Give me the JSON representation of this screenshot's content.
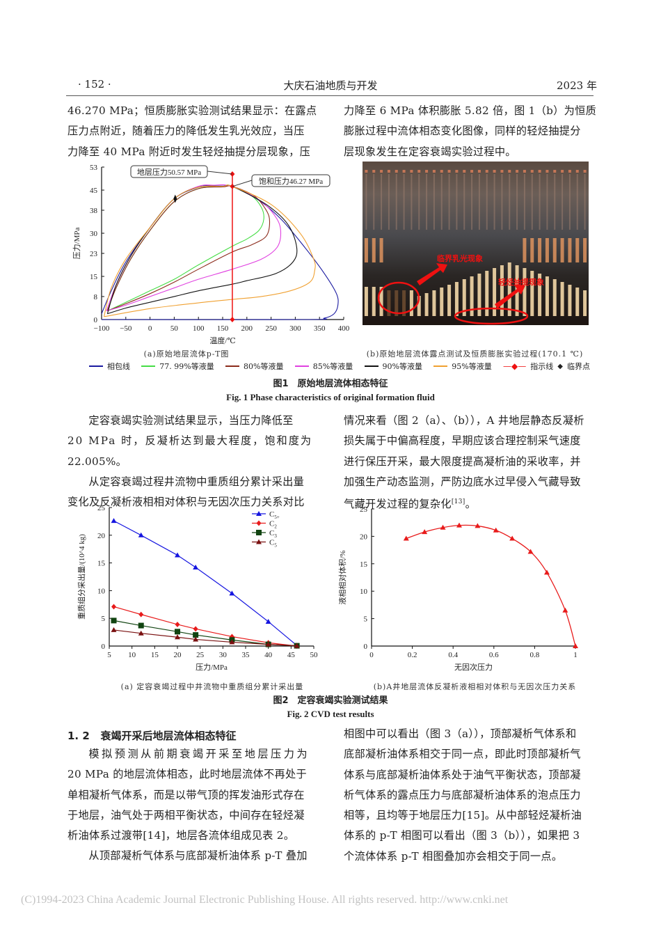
{
  "header": {
    "page_number": "· 152 ·",
    "journal": "大庆石油地质与开发",
    "year": "2023 年"
  },
  "top_text": {
    "left": [
      "46.270 MPa；恒质膨胀实验测试结果显示：在露点",
      "压力点附近，随着压力的降低发生乳光效应，当压",
      "力降至 40 MPa 附近时发生轻烃抽提分层现象，压"
    ],
    "right": [
      "力降至 6 MPa 体积膨胀 5.82 倍，图 1（b）为恒质",
      "膨胀过程中流体相态变化图像，同样的轻烃抽提分",
      "层现象发生在定容衰竭实验过程中。"
    ]
  },
  "fig1": {
    "subcap_a": "(a)原始地层流体p-T图",
    "subcap_b": "(b)原始地层流体露点测试及恒质膨胀实验过程(170.1 ℃)",
    "photo_labels": {
      "critical": "临界乳光现象",
      "extraction": "轻烃抽提现象"
    },
    "legend": [
      {
        "label": "相包线",
        "color": "#1a1aa0"
      },
      {
        "label": "77. 99%等液量",
        "color": "#44dd44"
      },
      {
        "label": "80%等液量",
        "color": "#8b2a1a"
      },
      {
        "label": "85%等液量",
        "color": "#e040e0"
      },
      {
        "label": "90%等液量",
        "color": "#111111"
      },
      {
        "label": "95%等液量",
        "color": "#f0a030"
      },
      {
        "label": "指示线",
        "color": "#ee1111"
      },
      {
        "label": "临界点",
        "color": "#111111"
      }
    ],
    "caption_cn": "图1　原始地层流体相态特征",
    "caption_en": "Fig. 1  Phase characteristics of original formation fluid"
  },
  "mid_text": {
    "left": [
      {
        "indent": true,
        "text": "定容衰竭实验测试结果显示，当压力降低至"
      },
      {
        "indent": false,
        "text": "20 MPa 时，反凝析达到最大程度，饱和度为"
      },
      {
        "indent": false,
        "text": "22.005%。"
      },
      {
        "indent": true,
        "text": "从定容衰竭过程井流物中重质组分累计采出量"
      },
      {
        "indent": false,
        "text": "变化及反凝析液相相对体积与无因次压力关系对比"
      }
    ],
    "right": [
      "情况来看（图 2（a）、（b）），A 井地层静态反凝析",
      "损失属于中偏高程度，早期应该合理控制采气速度",
      "进行保压开采，最大限度提高凝析油的采收率，并",
      "加强生产动态监测，严防边底水过早侵入气藏导致",
      "气藏开发过程的复杂化"
    ],
    "right_ref": "[13]",
    "right_end": "。"
  },
  "fig2": {
    "subcap_a": "(a) 定容衰竭过程中井流物中重质组分累计采出量",
    "subcap_b": "(b)A井地层流体反凝析液相相对体积与无因次压力关系",
    "caption_cn": "图2　定容衰竭实验测试结果",
    "caption_en": "Fig. 2  CVD test results"
  },
  "section": {
    "number": "1. 2",
    "title": "衰竭开采后地层流体相态特征"
  },
  "bottom_text": {
    "left": [
      {
        "indent": true,
        "text": "模拟预测从前期衰竭开采至地层压力为"
      },
      {
        "indent": false,
        "text": "20 MPa 的地层流体相态，此时地层流体不再处于"
      },
      {
        "indent": false,
        "text": "单相凝析气体系，而是以带气顶的挥发油形式存在"
      },
      {
        "indent": false,
        "text": "于地层，油气处于两相平衡状态，中间存在轻烃凝"
      },
      {
        "indent": false,
        "text": "析油体系过渡带[14]，地层各流体组成见表 2。"
      },
      {
        "indent": true,
        "text": "从顶部凝析气体系与底部凝析油体系 p-T 叠加"
      }
    ],
    "right": [
      "相图中可以看出（图 3（a）），顶部凝析气体系和",
      "底部凝析油体系相交于同一点，即此时顶部凝析气",
      "体系与底部凝析油体系处于油气平衡状态，顶部凝",
      "析气体系的露点压力与底部凝析油体系的泡点压力",
      "相等，且均等于地层压力[15]。从中部轻烃凝析油",
      "体系的 p-T 相图可以看出（图 3（b）），如果把 3",
      "个流体体系 p-T 相图叠加亦会相交于同一点。"
    ]
  },
  "footer": "(C)1994-2023 China Academic Journal Electronic Publishing House. All rights reserved.    http://www.cnki.net",
  "chart_data": [
    {
      "type": "line",
      "title": "(a)原始地层流体p-T图",
      "xlabel": "温度/℃",
      "ylabel": "压力/MPa",
      "xlim": [
        -100,
        400
      ],
      "ylim": [
        0,
        53
      ],
      "xticks": [
        -100,
        -50,
        0,
        50,
        100,
        150,
        200,
        250,
        300,
        350,
        400
      ],
      "yticks": [
        0,
        8,
        15,
        23,
        30,
        38,
        45,
        53
      ],
      "annotations": [
        {
          "text": "地层压力50.57 MPa",
          "x": 170,
          "y": 50.57
        },
        {
          "text": "饱和压力46.27 MPa",
          "x": 170,
          "y": 46.27
        }
      ],
      "critical_point": {
        "x": 52,
        "y": 42
      },
      "indicator_line": {
        "x": 170,
        "points_y": [
          0,
          46.27,
          50.57
        ]
      },
      "series": [
        {
          "name": "相包线",
          "color": "#1a1aa0",
          "points": [
            [
              -100,
              2
            ],
            [
              -80,
              10
            ],
            [
              -50,
              20
            ],
            [
              0,
              32
            ],
            [
              50,
              42
            ],
            [
              100,
              46
            ],
            [
              130,
              46.6
            ],
            [
              170,
              46.27
            ],
            [
              220,
              42
            ],
            [
              270,
              35
            ],
            [
              320,
              25
            ],
            [
              360,
              16
            ],
            [
              385,
              9
            ],
            [
              388,
              5
            ],
            [
              380,
              2
            ],
            [
              360,
              0.5
            ],
            [
              320,
              0
            ],
            [
              -100,
              0
            ]
          ]
        },
        {
          "name": "77.99%等液量",
          "color": "#44dd44",
          "points": [
            [
              -88,
              3
            ],
            [
              -70,
              11
            ],
            [
              -40,
              21
            ],
            [
              0,
              31
            ],
            [
              50,
              41
            ],
            [
              100,
              45.5
            ],
            [
              150,
              46.2
            ],
            [
              170,
              46.27
            ],
            [
              210,
              43
            ],
            [
              230,
              39
            ],
            [
              235,
              35
            ],
            [
              225,
              31
            ],
            [
              200,
              28
            ],
            [
              170,
              25.5
            ],
            [
              100,
              19
            ],
            [
              50,
              14
            ],
            [
              0,
              10
            ],
            [
              -50,
              6
            ],
            [
              -88,
              3
            ]
          ]
        },
        {
          "name": "80%等液量",
          "color": "#8b2a1a",
          "points": [
            [
              -88,
              3
            ],
            [
              -70,
              11
            ],
            [
              -40,
              21
            ],
            [
              0,
              31
            ],
            [
              50,
              41
            ],
            [
              100,
              45.5
            ],
            [
              150,
              46.1
            ],
            [
              170,
              46.27
            ],
            [
              215,
              43
            ],
            [
              240,
              38
            ],
            [
              247,
              34
            ],
            [
              240,
              29
            ],
            [
              210,
              26
            ],
            [
              170,
              23.5
            ],
            [
              100,
              17.5
            ],
            [
              50,
              13
            ],
            [
              0,
              9
            ],
            [
              -50,
              5.5
            ],
            [
              -88,
              3
            ]
          ]
        },
        {
          "name": "85%等液量",
          "color": "#e040e0",
          "points": [
            [
              -90,
              3
            ],
            [
              -70,
              12
            ],
            [
              -40,
              22
            ],
            [
              0,
              32
            ],
            [
              50,
              42
            ],
            [
              100,
              46.3
            ],
            [
              130,
              46.7
            ],
            [
              170,
              46.27
            ],
            [
              230,
              41
            ],
            [
              262,
              35
            ],
            [
              270,
              30
            ],
            [
              262,
              25
            ],
            [
              230,
              21
            ],
            [
              170,
              17.5
            ],
            [
              100,
              14
            ],
            [
              50,
              11
            ],
            [
              0,
              8
            ],
            [
              -50,
              5
            ],
            [
              -90,
              3
            ]
          ]
        },
        {
          "name": "90%等液量",
          "color": "#111111",
          "points": [
            [
              -88,
              2
            ],
            [
              -70,
              12
            ],
            [
              -40,
              22
            ],
            [
              0,
              32
            ],
            [
              50,
              42
            ],
            [
              100,
              46
            ],
            [
              150,
              46.3
            ],
            [
              170,
              46.27
            ],
            [
              240,
              40
            ],
            [
              285,
              33
            ],
            [
              303,
              25
            ],
            [
              295,
              20
            ],
            [
              260,
              16
            ],
            [
              200,
              13.5
            ],
            [
              170,
              12.3
            ],
            [
              100,
              10
            ],
            [
              50,
              8
            ],
            [
              0,
              6
            ],
            [
              -50,
              4
            ],
            [
              -88,
              2
            ]
          ]
        },
        {
          "name": "95%等液量",
          "color": "#f0a030",
          "points": [
            [
              -95,
              1
            ],
            [
              -80,
              11
            ],
            [
              -50,
              21
            ],
            [
              0,
              32
            ],
            [
              50,
              42
            ],
            [
              100,
              46
            ],
            [
              150,
              46.3
            ],
            [
              170,
              46.27
            ],
            [
              250,
              40
            ],
            [
              310,
              30
            ],
            [
              338,
              21
            ],
            [
              340,
              17
            ],
            [
              330,
              13
            ],
            [
              290,
              10
            ],
            [
              230,
              8
            ],
            [
              170,
              7
            ],
            [
              100,
              5.8
            ],
            [
              0,
              3.8
            ],
            [
              -95,
              1
            ]
          ]
        }
      ]
    },
    {
      "type": "line",
      "title": "(a) 定容衰竭过程中井流物中重质组分累计采出量",
      "xlabel": "压力/MPa",
      "ylabel": "重质组分采出量/(10^4 kg)",
      "xlim": [
        5,
        50
      ],
      "ylim": [
        0,
        25
      ],
      "xticks": [
        5,
        10,
        15,
        20,
        25,
        30,
        35,
        40,
        45,
        50
      ],
      "yticks": [
        0,
        5,
        10,
        15,
        20,
        25
      ],
      "legend_position": "upper right",
      "x": [
        6,
        12,
        20,
        24,
        32,
        40,
        46.27
      ],
      "series": [
        {
          "name": "C5+",
          "color": "#1515e0",
          "marker": "triangle",
          "values": [
            22.6,
            20.0,
            16.4,
            14.2,
            9.5,
            4.4,
            0.1
          ]
        },
        {
          "name": "C2",
          "color": "#e81b1b",
          "marker": "diamond",
          "values": [
            7.1,
            5.7,
            3.9,
            3.1,
            1.7,
            0.6,
            0.0
          ]
        },
        {
          "name": "C3",
          "color": "#114411",
          "marker": "square",
          "values": [
            4.6,
            3.7,
            2.6,
            2.0,
            1.1,
            0.3,
            0.05
          ]
        },
        {
          "name": "C5",
          "color": "#7a1010",
          "marker": "triangle",
          "values": [
            2.9,
            2.3,
            1.6,
            1.2,
            0.7,
            0.3,
            0.05
          ]
        }
      ]
    },
    {
      "type": "line",
      "title": "(b)A井地层流体反凝析液相相对体积与无因次压力关系",
      "xlabel": "无因次压力",
      "ylabel": "液相相对体积/%",
      "xlim": [
        0,
        1
      ],
      "ylim": [
        0,
        25
      ],
      "xticks": [
        0,
        0.2,
        0.4,
        0.6,
        0.8,
        1
      ],
      "yticks": [
        0,
        5,
        10,
        15,
        20,
        25
      ],
      "x": [
        0.17,
        0.26,
        0.35,
        0.43,
        0.52,
        0.61,
        0.69,
        0.78,
        0.86,
        0.95,
        1.0
      ],
      "series": [
        {
          "name": "液相相对体积",
          "color": "#e81b1b",
          "marker": "triangle",
          "values": [
            19.6,
            20.8,
            21.6,
            22.0,
            21.9,
            21.1,
            19.6,
            17.2,
            13.4,
            6.5,
            0.0
          ]
        }
      ]
    }
  ]
}
